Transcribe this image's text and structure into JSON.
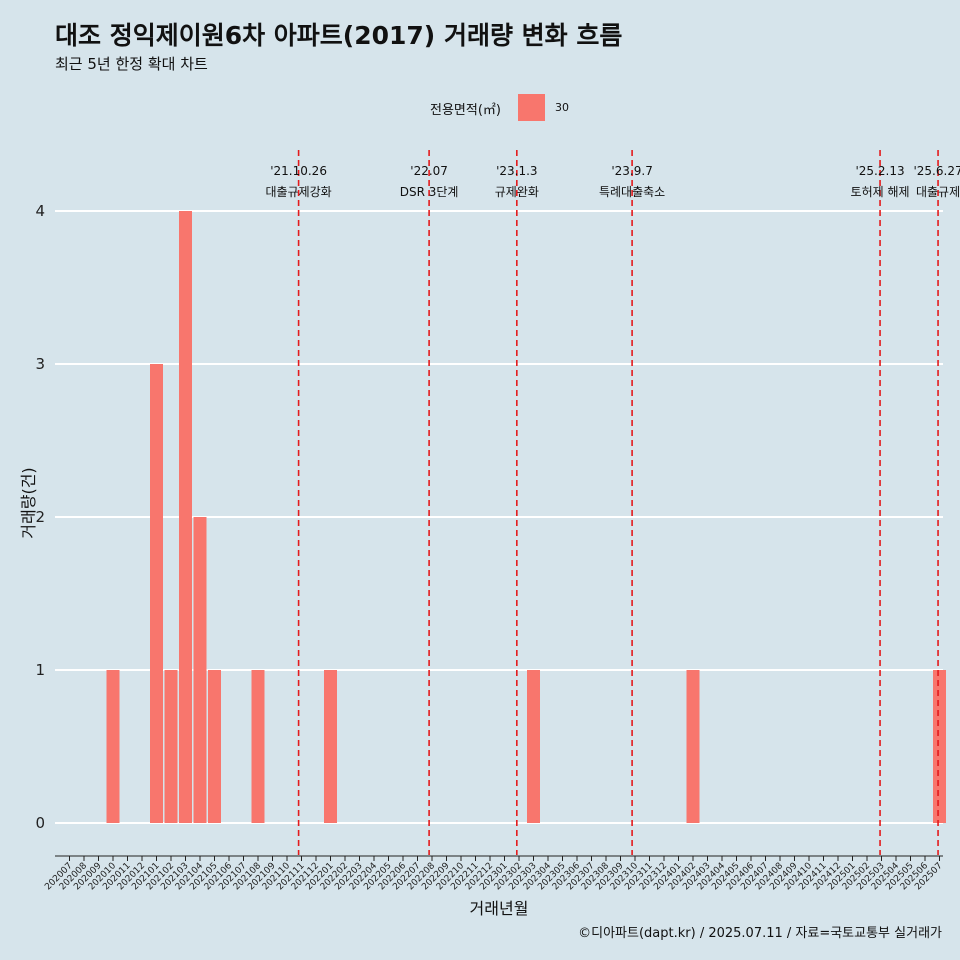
{
  "title": "대조 정익제이원6차 아파트(2017) 거래량 변화 흐름",
  "subtitle": "최근 5년 한정 확대 차트",
  "legend": {
    "title": "전용면적(㎡)",
    "items": [
      {
        "label": "30",
        "color": "#f8766d"
      }
    ]
  },
  "caption": "©디아파트(dapt.kr) / 2025.07.11 / 자료=국토교통부 실거래가",
  "colors": {
    "background": "#d6e4eb",
    "bar": "#f8766d",
    "event_line": "#e31a1c",
    "grid": "#ffffff"
  },
  "chart_data": {
    "type": "bar",
    "xlabel": "거래년월",
    "ylabel": "거래량(건)",
    "ylim": [
      0,
      4
    ],
    "yticks": [
      0,
      1,
      2,
      3,
      4
    ],
    "grid": true,
    "legend_position": "top",
    "categories": [
      "202007",
      "202008",
      "202009",
      "202010",
      "202011",
      "202012",
      "202101",
      "202102",
      "202103",
      "202104",
      "202105",
      "202106",
      "202107",
      "202108",
      "202109",
      "202110",
      "202111",
      "202112",
      "202201",
      "202202",
      "202203",
      "202204",
      "202205",
      "202206",
      "202207",
      "202208",
      "202209",
      "202210",
      "202211",
      "202212",
      "202301",
      "202302",
      "202303",
      "202304",
      "202305",
      "202306",
      "202307",
      "202308",
      "202309",
      "202310",
      "202311",
      "202312",
      "202401",
      "202402",
      "202403",
      "202404",
      "202405",
      "202406",
      "202407",
      "202408",
      "202409",
      "202410",
      "202411",
      "202412",
      "202501",
      "202502",
      "202503",
      "202504",
      "202505",
      "202506",
      "202507"
    ],
    "series": [
      {
        "name": "30",
        "values": [
          0,
          0,
          0,
          1,
          0,
          0,
          3,
          1,
          4,
          2,
          1,
          0,
          0,
          1,
          0,
          0,
          0,
          0,
          1,
          0,
          0,
          0,
          0,
          0,
          0,
          0,
          0,
          0,
          0,
          0,
          0,
          0,
          1,
          0,
          0,
          0,
          0,
          0,
          0,
          0,
          0,
          0,
          0,
          1,
          0,
          0,
          0,
          0,
          0,
          0,
          0,
          0,
          0,
          0,
          0,
          0,
          0,
          0,
          0,
          0,
          1
        ]
      }
    ],
    "events": [
      {
        "date": "'21.10.26",
        "label": "대출규제강화",
        "month_index": 15.8
      },
      {
        "date": "'22.07",
        "label": "DSR 3단계",
        "month_index": 24.8
      },
      {
        "date": "'23.1.3",
        "label": "규제완화",
        "month_index": 30.85
      },
      {
        "date": "'23.9.7",
        "label": "특례대출축소",
        "month_index": 38.8
      },
      {
        "date": "'25.2.13",
        "label": "토허제 해제",
        "month_index": 55.9
      },
      {
        "date": "'25.6.27",
        "label": "대출규제",
        "month_index": 59.9
      }
    ]
  }
}
